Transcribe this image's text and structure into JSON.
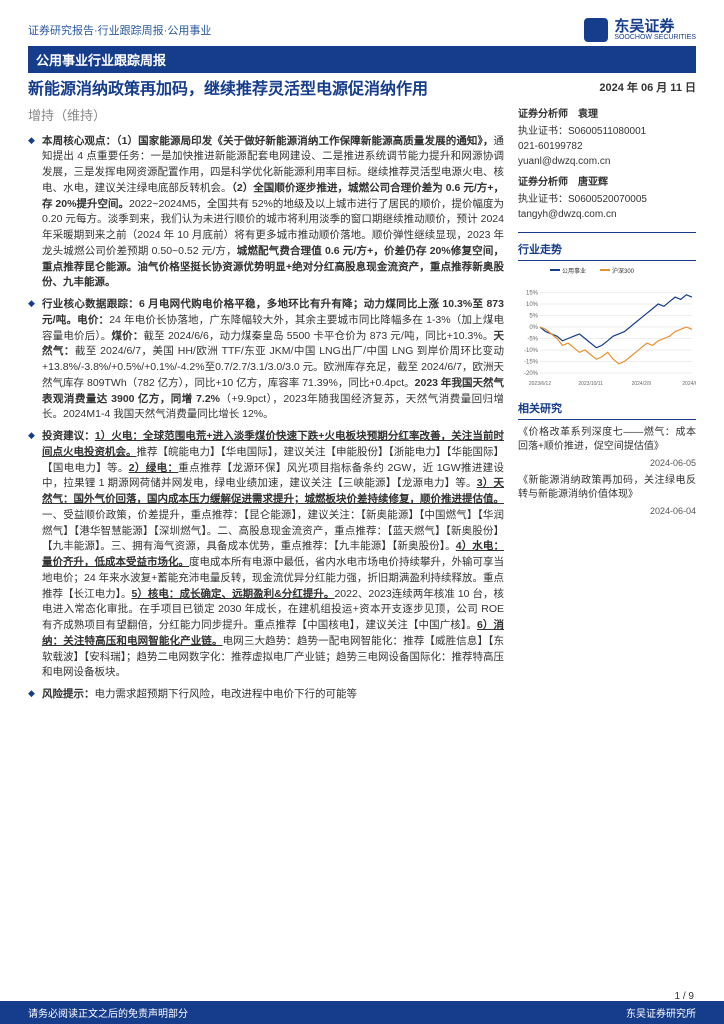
{
  "header": {
    "top_label": "证券研究报告·行业跟踪周报·公用事业",
    "logo_cn": "东吴证券",
    "logo_en": "SOOCHOW SECURITIES"
  },
  "banner": "公用事业行业跟踪周报",
  "title": "新能源消纳政策再加码，继续推荐灵活型电源促消纳作用",
  "rating": "增持（维持）",
  "date": "2024 年 06 月 11 日",
  "analysts": [
    {
      "title": "证券分析师　袁理",
      "lines": [
        "执业证书：S0600511080001",
        "021-60199782",
        "yuanl@dwzq.com.cn"
      ]
    },
    {
      "title": "证券分析师　唐亚辉",
      "lines": [
        "执业证书：S0600520070005",
        "tangyh@dwzq.com.cn"
      ]
    }
  ],
  "trend_title": "行业走势",
  "chart": {
    "type": "line",
    "legend": [
      "公用事业",
      "沪深300"
    ],
    "legend_colors": [
      "#163c8c",
      "#e89030"
    ],
    "background": "#ffffff",
    "grid_color": "#dcdcdc",
    "ylim": [
      -20,
      20
    ],
    "yticks": [
      -20,
      -15,
      -10,
      -5,
      0,
      5,
      10,
      15
    ],
    "xticks": [
      "2023/6/12",
      "2023/10/11",
      "2024/2/9",
      "2024/6/9"
    ],
    "series1_color": "#163c8c",
    "series2_color": "#e89030",
    "series1": [
      0,
      -2,
      -3,
      -4,
      -6,
      -5,
      -4,
      -3,
      -5,
      -7,
      -9,
      -8,
      -6,
      -4,
      -3,
      -2,
      0,
      2,
      4,
      6,
      8,
      10,
      9,
      11,
      13,
      12,
      14,
      13
    ],
    "series2": [
      0,
      -1,
      -3,
      -5,
      -8,
      -7,
      -9,
      -11,
      -10,
      -12,
      -14,
      -13,
      -11,
      -14,
      -16,
      -15,
      -13,
      -11,
      -9,
      -7,
      -8,
      -6,
      -5,
      -4,
      -2,
      -1,
      0,
      -1
    ]
  },
  "related_title": "相关研究",
  "related": [
    {
      "text": "《价格改革系列深度七——燃气：成本回落+顺价推进，促空间提估值》",
      "date": "2024-06-05"
    },
    {
      "text": "《新能源消纳政策再加码，关注绿电反转与新能源消纳价值体现》",
      "date": "2024-06-04"
    }
  ],
  "bullets": [
    {
      "head": "本周核心观点：（1）国家能源局印发《关于做好新能源消纳工作保障新能源高质量发展的通知》，",
      "body": "通知提出 4 点重要任务：一是加快推进新能源配套电网建设、二是推进系统调节能力提升和网源协调发展，三是发挥电网资源配置作用，四是科学优化新能源利用率目标。继续推荐灵活型电源火电、核电、水电，建议关注绿电底部反转机会。<b>（2）全国顺价逐步推进，城燃公司合理价差为 0.6 元/方+，存 20%提升空间。</b>2022~2024M5，全国共有 52%的地级及以上城市进行了居民的顺价，提价幅度为 0.20 元每方。淡季到来，我们认为未进行顺价的城市将利用淡季的窗口期继续推动顺价，预计 2024 年采暖期到来之前（2024 年 10 月底前）将有更多城市推动顺价落地。顺价弹性继续显现，2023 年龙头城燃公司价差预期 0.50~0.52 元/方，<b>城燃配气费合理值 0.6 元/方+，价差仍存 20%修复空间，重点推荐昆仑能源。油气价格坚挺长协资源优势明显+绝对分红高股息现金流资产，重点推荐新奥股份、九丰能源。</b>"
    },
    {
      "head": "行业核心数据跟踪：6 月电网代购电价格平稳，多地环比有升有降；动力煤同比上涨 10.3%至 873 元/吨。",
      "body": "<b>电价：</b>24 年电价长协落地，广东降幅较大外，其余主要城市同比降幅多在 1-3%（加上煤电容量电价后）。<b>煤价：</b>截至 2024/6/6，动力煤秦皇岛 5500 卡平仓价为 873 元/吨，同比+10.3%。<b>天然气：</b>截至 2024/6/7，美国 HH/欧洲 TTF/东亚 JKM/中国 LNG出厂/中国 LNG 到岸价周环比变动+13.8%/-3.8%/+0.5%/+0.1%/-4.2%至0.7/2.7/3.1/3.0/3.0 元。欧洲库存充足，截至 2024/6/7，欧洲天然气库存 809TWh（782 亿方），同比+10 亿方，库容率 71.39%，同比+0.4pct。<b>2023 年我国天然气表观消费量达 3900 亿方，同增 7.2%</b>（+9.9pct），2023年随我国经济复苏，天然气消费量回归增长。2024M1-4 我国天然气消费量同比增长 12%。"
    },
    {
      "head": "投资建议：",
      "body": "<u><b>1）火电：全球范围电荒+进入淡季煤价快速下跌+火电板块预期分红率改善，关注当前时间点火电投资机会。</b></u>推荐【皖能电力】【华电国际】，建议关注【申能股份】【浙能电力】【华能国际】【国电电力】等。<u><b>2）绿电：</b></u>重点推荐【龙源环保】风光项目指标备条约 2GW，近 1GW推进建设中，拉果锂 1 期源网荷储并网发电，绿电业绩加速，建议关注【三峡能源】【龙源电力】等。<u><b>3）天然气：国外气价回落，国内成本压力缓解促进需求提升；城燃板块价差持续修复，顺价推进提估值。</b></u>一、受益顺价政策，价差提升，重点推荐：【昆仑能源】，建议关注：【新奥能源】【中国燃气】【华润燃气】【港华智慧能源】【深圳燃气】。二、高股息现金流资产，重点推荐：【蓝天燃气】【新奥股份】【九丰能源】。三、拥有海气资源，具备成本优势，重点推荐：【九丰能源】【新奥股份】。<u><b>4）水电：量价齐升，低成本受益市场化。</b></u>度电成本所有电源中最低，省内水电市场电价持续攀升，外输可享当地电价；24 年来水波复+蓄能充沛电量反转，现金流优异分红能力强，折旧期满盈利持续释放。重点推荐【长江电力】。<u><b>5）核电：成长确定、远期盈利&分红提升。</b></u>2022、2023连续两年核准 10 台，核电进入常态化审批。在手项目已锁定 2030 年成长，在建机组投运+资本开支逐步见顶，公司 ROE 有齐成熟项目有望翻倍，分红能力同步提升。重点推荐【中国核电】，建议关注【中国广核】。<u><b>6）消纳：关注特高压和电网智能化产业链。</b></u>电网三大趋势：趋势一配电网智能化：推荐【威胜信息】【东软载波】【安科瑞】；趋势二电网数字化：推荐虚拟电厂产业链；趋势三电网设备国际化：推荐特高压和电网设备板块。"
    },
    {
      "head": "风险提示：",
      "body": "电力需求超预期下行风险，电改进程中电价下行的可能等"
    }
  ],
  "footer": {
    "left": "请务必阅读正文之后的免责声明部分",
    "right": "东吴证券研究所",
    "page": "1 / 9"
  },
  "colors": {
    "brand": "#163c8c",
    "accent": "#e89030",
    "text": "#333333"
  }
}
